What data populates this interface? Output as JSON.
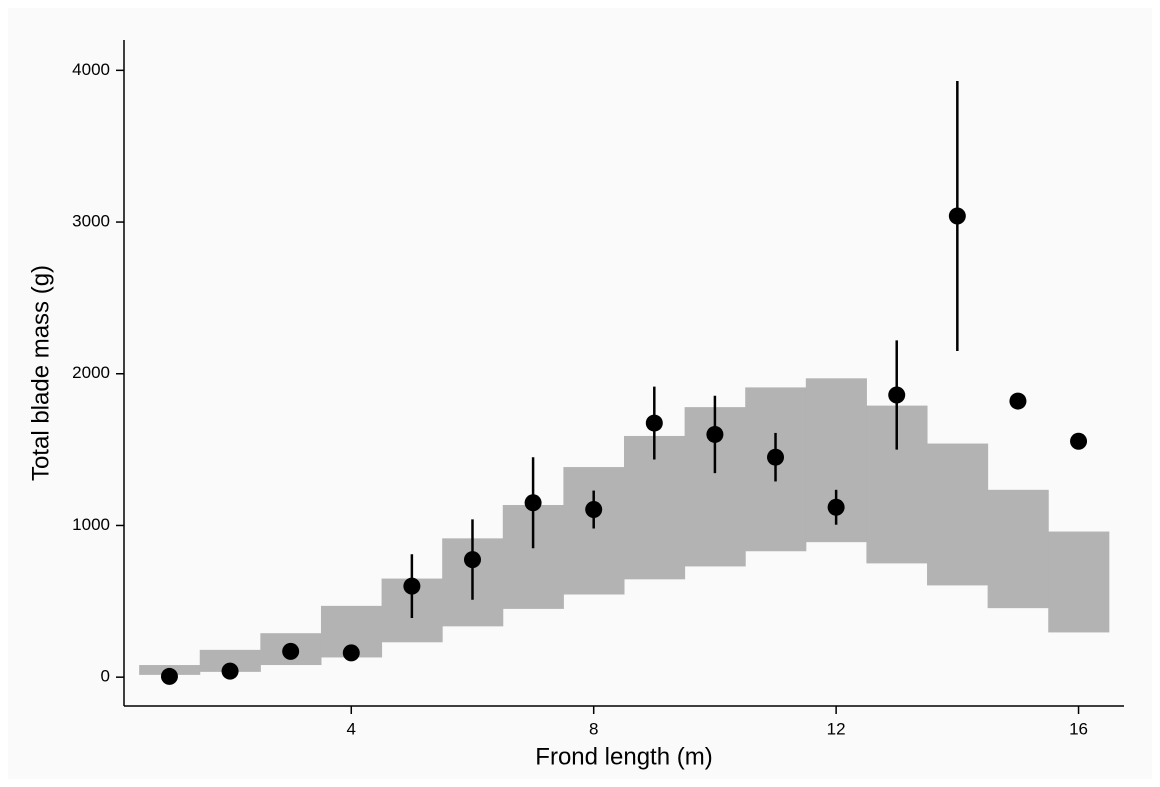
{
  "chart_data": {
    "type": "scatter",
    "x_label": "Frond length (m)",
    "y_label": "Total blade mass (g)",
    "x": [
      1,
      2,
      3,
      4,
      5,
      6,
      7,
      8,
      9,
      10,
      11,
      12,
      13,
      14,
      15,
      16
    ],
    "series": [
      {
        "color": "#000000",
        "values": [
          5,
          40,
          170,
          160,
          600,
          775,
          1150,
          1105,
          1675,
          1600,
          1450,
          1120,
          1860,
          3040,
          1820,
          1555
        ],
        "errors": [
          null,
          null,
          null,
          null,
          210,
          265,
          300,
          125,
          240,
          255,
          160,
          115,
          360,
          890,
          null,
          null
        ]
      }
    ],
    "band": {
      "color": "#b3b3b3",
      "lower": [
        15,
        35,
        80,
        130,
        230,
        335,
        450,
        545,
        645,
        730,
        830,
        890,
        750,
        605,
        455,
        295
      ],
      "upper": [
        80,
        180,
        290,
        470,
        650,
        915,
        1135,
        1385,
        1590,
        1780,
        1910,
        1970,
        1790,
        1540,
        1235,
        960
      ]
    },
    "xlim": [
      0.25,
      16.75
    ],
    "ylim": [
      -190,
      4200
    ],
    "xticks": [
      4,
      8,
      12,
      16
    ],
    "yticks": [
      0,
      1000,
      2000,
      3000,
      4000
    ]
  }
}
